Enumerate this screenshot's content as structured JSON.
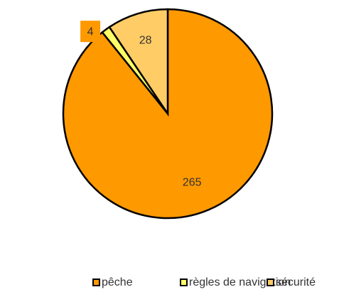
{
  "chart_data": {
    "type": "pie",
    "categories": [
      "pêche",
      "règles de navigation",
      "sécurité"
    ],
    "values": [
      265,
      4,
      28
    ],
    "colors": [
      "#FF9900",
      "#FFFF66",
      "#FFCC66"
    ],
    "legend": "bottom"
  }
}
